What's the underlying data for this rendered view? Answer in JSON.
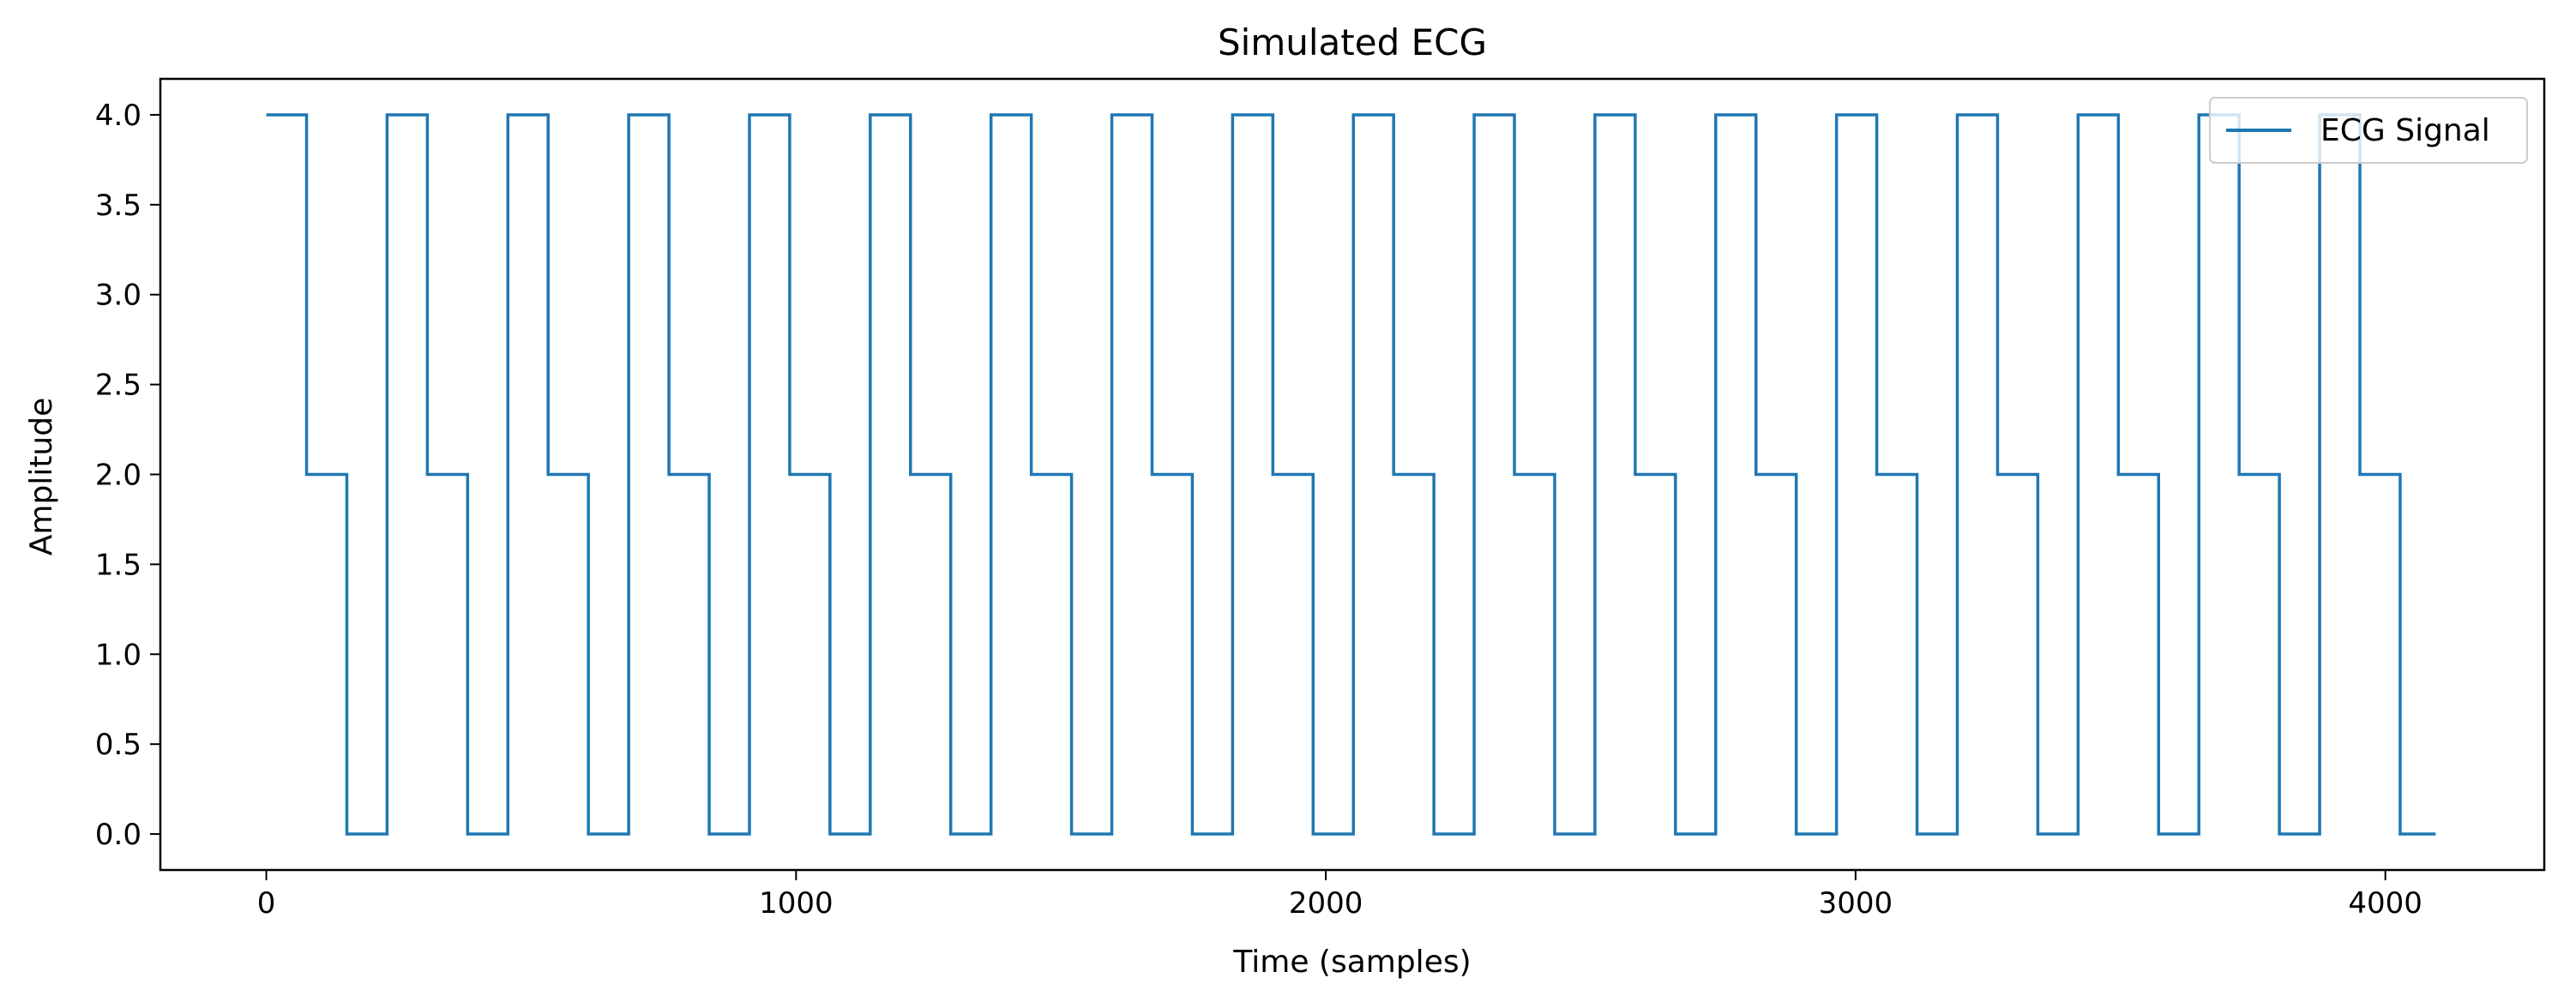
{
  "chart_data": {
    "type": "line",
    "title": "Simulated ECG",
    "xlabel": "Time (samples)",
    "ylabel": "Amplitude",
    "xlim": [
      -200,
      4300
    ],
    "ylim": [
      -0.2,
      4.2
    ],
    "x_ticks": [
      0,
      1000,
      2000,
      3000,
      4000
    ],
    "y_ticks": [
      0.0,
      0.5,
      1.0,
      1.5,
      2.0,
      2.5,
      3.0,
      3.5,
      4.0
    ],
    "x_tick_labels": [
      "0",
      "1000",
      "2000",
      "3000",
      "4000"
    ],
    "y_tick_labels": [
      "0.0",
      "0.5",
      "1.0",
      "1.5",
      "2.0",
      "2.5",
      "3.0",
      "3.5",
      "4.0"
    ],
    "grid": false,
    "legend_position": "top-right",
    "series": [
      {
        "name": "ECG Signal",
        "color": "#1f77b4",
        "step": true,
        "period": 228,
        "segments": [
          4.0,
          2.0,
          0.0
        ],
        "segment_length": 76,
        "x_start": 0,
        "x_end": 4095
      }
    ]
  }
}
